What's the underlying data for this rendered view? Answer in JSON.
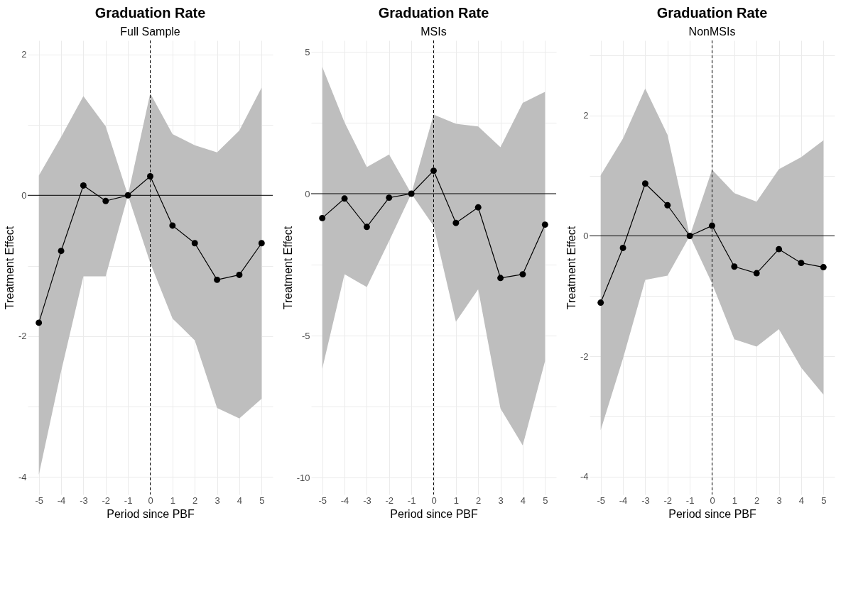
{
  "chart_data": [
    {
      "type": "line",
      "title": "Graduation Rate",
      "subtitle": "Full Sample",
      "xlabel": "Period since PBF",
      "ylabel": "Treatment Effect",
      "x": [
        -5,
        -4,
        -3,
        -2,
        -1,
        0,
        1,
        2,
        3,
        4,
        5
      ],
      "series": [
        {
          "color": "#000000",
          "values": [
            -1.81,
            -0.79,
            0.14,
            -0.08,
            0,
            0.27,
            -0.43,
            -0.68,
            -1.2,
            -1.13,
            -0.68
          ],
          "lower": [
            -3.97,
            -2.5,
            -1.15,
            -1.15,
            0,
            -0.96,
            -1.75,
            -2.06,
            -3.02,
            -3.17,
            -2.89
          ],
          "upper": [
            0.28,
            0.83,
            1.41,
            0.98,
            0,
            1.45,
            0.87,
            0.71,
            0.61,
            0.92,
            1.53
          ]
        }
      ],
      "xlim": [
        -5.5,
        5.5
      ],
      "xticks": [
        -5,
        -4,
        -3,
        -2,
        -1,
        0,
        1,
        2,
        3,
        4,
        5
      ],
      "ylim": [
        -4.25,
        2.2
      ],
      "yticks": [
        {
          "value": -4,
          "label": "-4"
        },
        {
          "value": -3,
          "label": null
        },
        {
          "value": -2,
          "label": "-2"
        },
        {
          "value": -1,
          "label": null
        },
        {
          "value": 0,
          "label": "0"
        },
        {
          "value": 1,
          "label": null
        },
        {
          "value": 2,
          "label": "2"
        }
      ],
      "ref_lines": [
        {
          "axis": "y",
          "value": 0,
          "color": "#000000",
          "line_style": "solid"
        },
        {
          "axis": "x",
          "value": 0,
          "color": "#000000",
          "line_style": "dashed"
        }
      ],
      "grid": true,
      "marker": "circle",
      "line_style": "solid"
    },
    {
      "type": "line",
      "title": "Graduation Rate",
      "subtitle": "MSIs",
      "xlabel": "Period since PBF",
      "ylabel": "Treatment Effect",
      "x": [
        -5,
        -4,
        -3,
        -2,
        -1,
        0,
        1,
        2,
        3,
        4,
        5
      ],
      "series": [
        {
          "color": "#000000",
          "values": [
            -0.86,
            -0.17,
            -1.17,
            -0.14,
            0,
            0.81,
            -1.03,
            -0.48,
            -2.97,
            -2.84,
            -1.09
          ],
          "lower": [
            -6.17,
            -2.84,
            -3.29,
            -1.67,
            0,
            -1.14,
            -4.51,
            -3.37,
            -7.57,
            -8.87,
            -5.9
          ],
          "upper": [
            4.47,
            2.51,
            0.94,
            1.38,
            0,
            2.79,
            2.46,
            2.37,
            1.64,
            3.2,
            3.59
          ]
        }
      ],
      "xlim": [
        -5.5,
        5.5
      ],
      "xticks": [
        -5,
        -4,
        -3,
        -2,
        -1,
        0,
        1,
        2,
        3,
        4,
        5
      ],
      "ylim": [
        -10.6,
        5.4
      ],
      "yticks": [
        {
          "value": -10,
          "label": "-10"
        },
        {
          "value": -7.5,
          "label": null
        },
        {
          "value": -5,
          "label": "-5"
        },
        {
          "value": -2.5,
          "label": null
        },
        {
          "value": 0,
          "label": "0"
        },
        {
          "value": 2.5,
          "label": null
        },
        {
          "value": 5,
          "label": "5"
        }
      ],
      "ref_lines": [
        {
          "axis": "y",
          "value": 0,
          "color": "#000000",
          "line_style": "solid"
        },
        {
          "axis": "x",
          "value": 0,
          "color": "#000000",
          "line_style": "dashed"
        }
      ],
      "grid": true,
      "marker": "circle",
      "line_style": "solid"
    },
    {
      "type": "line",
      "title": "Graduation Rate",
      "subtitle": "NonMSIs",
      "xlabel": "Period since PBF",
      "ylabel": "Treatment Effect",
      "x": [
        -5,
        -4,
        -3,
        -2,
        -1,
        0,
        1,
        2,
        3,
        4,
        5
      ],
      "series": [
        {
          "color": "#000000",
          "values": [
            -1.11,
            -0.2,
            0.87,
            0.51,
            0,
            0.17,
            -0.51,
            -0.62,
            -0.22,
            -0.45,
            -0.52
          ],
          "lower": [
            -3.23,
            -2.04,
            -0.73,
            -0.66,
            0,
            -0.79,
            -1.72,
            -1.84,
            -1.55,
            -2.19,
            -2.64
          ],
          "upper": [
            1.01,
            1.62,
            2.45,
            1.68,
            0,
            1.1,
            0.71,
            0.57,
            1.11,
            1.31,
            1.59
          ]
        }
      ],
      "xlim": [
        -5.5,
        5.5
      ],
      "xticks": [
        -5,
        -4,
        -3,
        -2,
        -1,
        0,
        1,
        2,
        3,
        4,
        5
      ],
      "ylim": [
        -4.3,
        3.25
      ],
      "yticks": [
        {
          "value": -4,
          "label": "-4"
        },
        {
          "value": -3,
          "label": null
        },
        {
          "value": -2,
          "label": "-2"
        },
        {
          "value": -1,
          "label": null
        },
        {
          "value": 0,
          "label": "0"
        },
        {
          "value": 1,
          "label": null
        },
        {
          "value": 2,
          "label": "2"
        },
        {
          "value": 3,
          "label": null
        }
      ],
      "ref_lines": [
        {
          "axis": "y",
          "value": 0,
          "color": "#000000",
          "line_style": "solid"
        },
        {
          "axis": "x",
          "value": 0,
          "color": "#000000",
          "line_style": "dashed"
        }
      ],
      "grid": true,
      "marker": "circle",
      "line_style": "solid"
    }
  ]
}
